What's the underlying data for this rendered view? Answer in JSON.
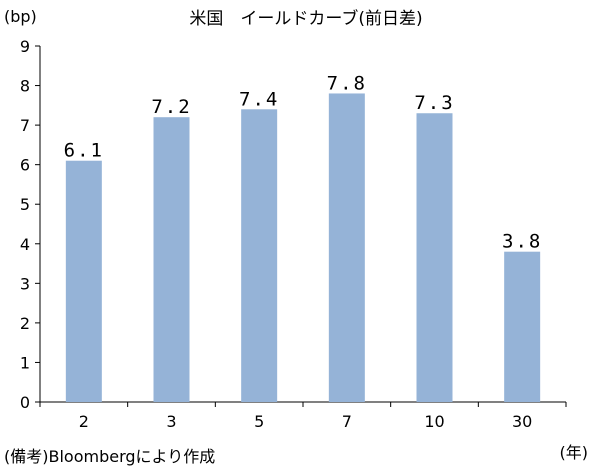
{
  "chart_data": {
    "type": "bar",
    "title": "米国　イールドカーブ(前日差)",
    "y_unit_label": "(bp)",
    "x_unit_label": "(年)",
    "source_note": "(備考)Bloombergにより作成",
    "categories": [
      "2",
      "3",
      "5",
      "7",
      "10",
      "30"
    ],
    "values": [
      6.1,
      7.2,
      7.4,
      7.8,
      7.3,
      3.8
    ],
    "data_labels": [
      "6.1",
      "7.2",
      "7.4",
      "7.8",
      "7.3",
      "3.8"
    ],
    "y_ticks": [
      "0",
      "1",
      "2",
      "3",
      "4",
      "5",
      "6",
      "7",
      "8",
      "9"
    ],
    "ylim": [
      0,
      9
    ],
    "grid": false,
    "legend": "none",
    "bar_color": "#95B3D7"
  }
}
